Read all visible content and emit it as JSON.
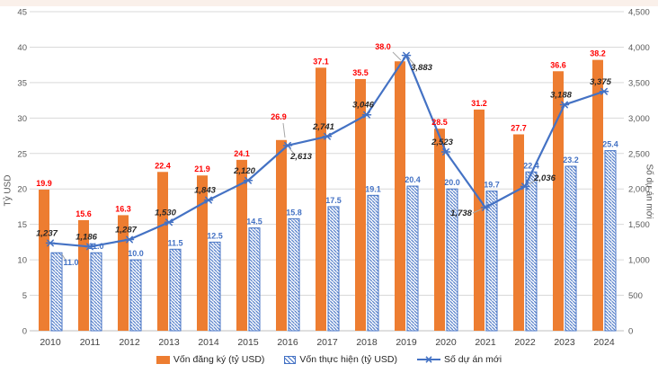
{
  "page": {
    "background": "#FFFFFF",
    "banner_color": "#FAF0EA"
  },
  "chart_data": {
    "type": "combo",
    "categories": [
      "2010",
      "2011",
      "2012",
      "2013",
      "2014",
      "2015",
      "2016",
      "2017",
      "2018",
      "2019",
      "2020",
      "2021",
      "2022",
      "2023",
      "2024"
    ],
    "series": [
      {
        "name": "Vốn đăng ký (tỷ USD)",
        "type": "bar",
        "fill": "solid",
        "color": "#ED7D31",
        "axis": "left",
        "values": [
          19.9,
          15.6,
          16.3,
          22.4,
          21.9,
          24.1,
          26.9,
          37.1,
          35.5,
          38.0,
          28.5,
          31.2,
          27.7,
          36.6,
          38.2
        ],
        "labels": [
          "19.9",
          "15.6",
          "16.3",
          "22.4",
          "21.9",
          "24.1",
          "26.9",
          "37.1",
          "35.5",
          "38.0",
          "28.5",
          "31.2",
          "27.7",
          "36.6",
          "38.2"
        ],
        "label_color": "#FF0000"
      },
      {
        "name": "Vốn thực hiện (tỷ USD)",
        "type": "bar",
        "fill": "diagonal-hatch",
        "color": "#4472C4",
        "axis": "left",
        "values": [
          11.0,
          11.0,
          10.0,
          11.5,
          12.5,
          14.5,
          15.8,
          17.5,
          19.1,
          20.4,
          20.0,
          19.7,
          22.4,
          23.2,
          25.4
        ],
        "labels": [
          "11.0",
          "11.0",
          "10.0",
          "11.5",
          "12.5",
          "14.5",
          "15.8",
          "17.5",
          "19.1",
          "20.4",
          "20.0",
          "19.7",
          "22.4",
          "23.2",
          "25.4"
        ],
        "label_color": "#4472C4"
      },
      {
        "name": "Số dự án mới",
        "type": "line",
        "marker": "asterisk",
        "color": "#4472C4",
        "axis": "right",
        "values": [
          1237,
          1186,
          1287,
          1530,
          1843,
          2120,
          2613,
          2741,
          3046,
          3883,
          2523,
          1738,
          2036,
          3188,
          3375
        ],
        "labels": [
          "1,237",
          "1,186",
          "1,287",
          "1,530",
          "1,843",
          "2,120",
          "2,613",
          "2,741",
          "3,046",
          "3,883",
          "2,523",
          "1,738",
          "2,036",
          "3,188",
          "3,375"
        ],
        "label_color": "#262626"
      }
    ],
    "left_axis": {
      "label": "Tỷ USD",
      "min": 0,
      "max": 45,
      "step": 5,
      "tick_labels": [
        "0",
        "5",
        "10",
        "15",
        "20",
        "25",
        "30",
        "35",
        "40",
        "45"
      ]
    },
    "right_axis": {
      "label": "Số dự án mới",
      "min": 0,
      "max": 4500,
      "step": 500,
      "tick_labels": [
        "0",
        "500",
        "1,000",
        "1,500",
        "2,000",
        "2,500",
        "3,000",
        "3,500",
        "4,000",
        "4,500"
      ]
    },
    "legend": {
      "position": "bottom"
    },
    "grid": "horizontal",
    "colors": {
      "gridline": "#D9D9D9",
      "axis_text": "#595959",
      "category_text": "#404040",
      "leader_line": "#A6A6A6"
    }
  }
}
